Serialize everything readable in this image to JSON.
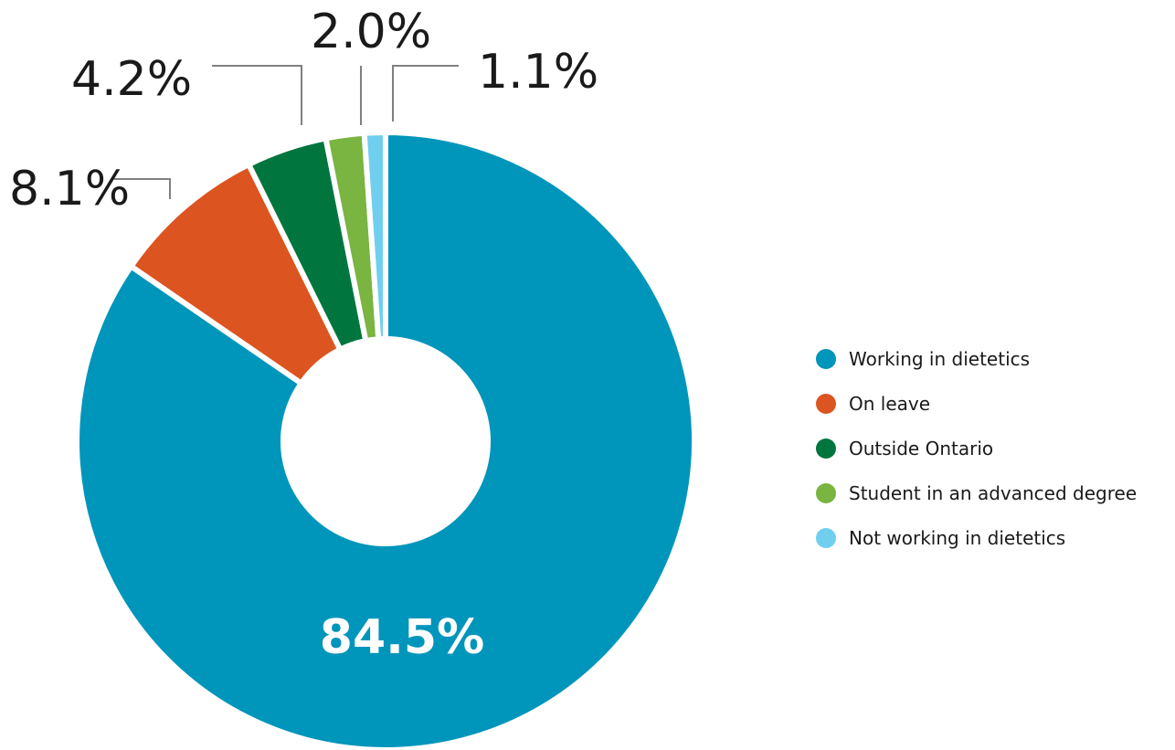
{
  "chart_data": {
    "type": "pie",
    "series": [
      {
        "name": "Working in dietetics",
        "value": 84.5,
        "label": "84.5%",
        "color": "#0095BB"
      },
      {
        "name": "On leave",
        "value": 8.1,
        "label": "8.1%",
        "color": "#DC5420"
      },
      {
        "name": "Outside Ontario",
        "value": 4.2,
        "label": "4.2%",
        "color": "#00763E"
      },
      {
        "name": "Student in an advanced degree",
        "value": 2.0,
        "label": "2.0%",
        "color": "#7AB441"
      },
      {
        "name": "Not working in dietetics",
        "value": 1.1,
        "label": "1.1%",
        "color": "#70CFEE"
      }
    ],
    "donut": true,
    "legend_position": "right"
  }
}
